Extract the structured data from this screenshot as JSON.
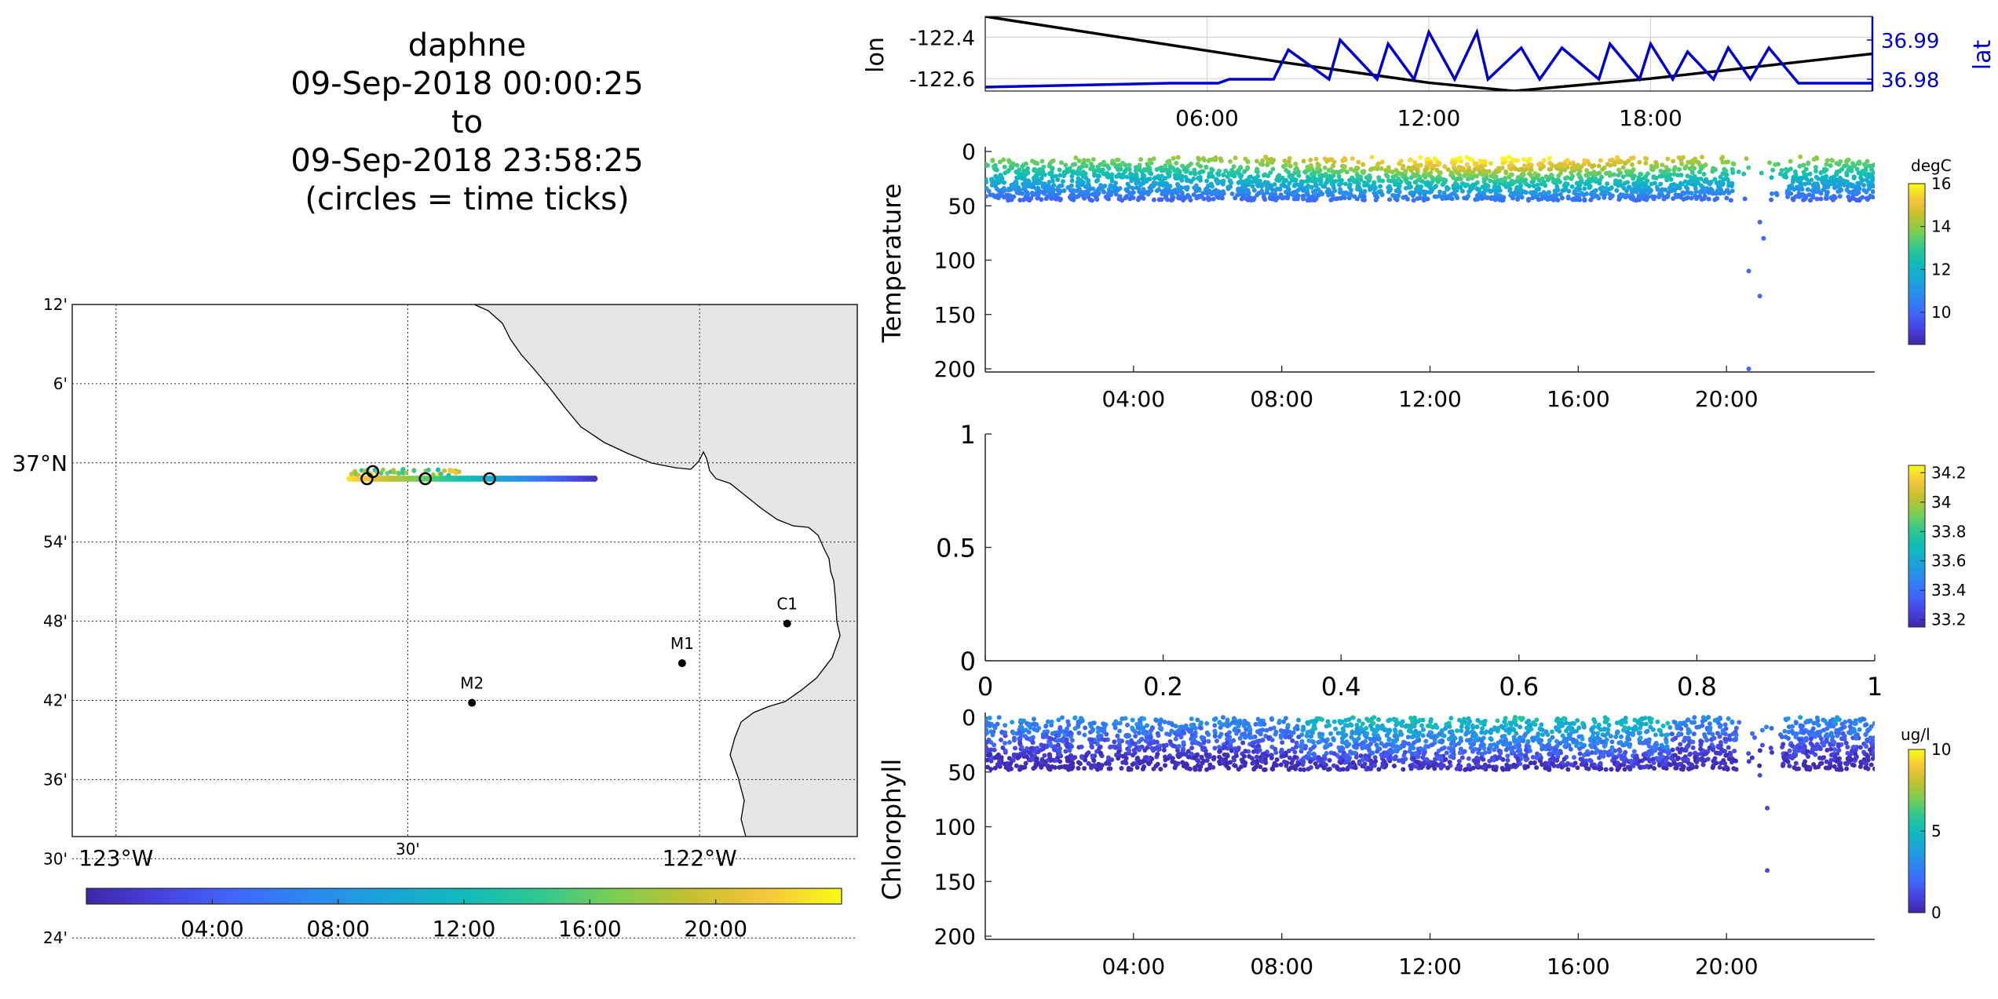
{
  "title": {
    "platform": "daphne",
    "start": "09-Sep-2018 00:00:25",
    "to": "to",
    "end": "09-Sep-2018 23:58:25",
    "note": "(circles = time ticks)"
  },
  "colors": {
    "lon_line": "#000000",
    "lat_line": "#0000cc",
    "land": "#e6e6e6",
    "parula": [
      "#3e26a8",
      "#4743e1",
      "#3f68fc",
      "#2a89ee",
      "#1aa5d8",
      "#0fbbbb",
      "#30c891",
      "#7bce52",
      "#c4c030",
      "#f6c63c",
      "#f9fb15"
    ]
  },
  "map": {
    "lat_labels": [
      "12'",
      "6'",
      "37°N",
      "54'",
      "48'",
      "42'",
      "36'",
      "30'",
      "24'"
    ],
    "lon_labels": [
      "123°W",
      "30'",
      "122°W"
    ],
    "time_colorbar_ticks": [
      "04:00",
      "08:00",
      "12:00",
      "16:00",
      "20:00"
    ],
    "stations": [
      {
        "name": "C1",
        "lon": -121.85,
        "lat": 36.797
      },
      {
        "name": "M1",
        "lon": -122.03,
        "lat": 36.747
      },
      {
        "name": "M2",
        "lon": -122.39,
        "lat": 36.697
      }
    ],
    "track": {
      "lon_start": -122.6,
      "lon_end": -122.18,
      "lat": 36.98
    },
    "time_tick_circles": [
      {
        "lon": -122.56,
        "lat": 36.989
      },
      {
        "lon": -122.57,
        "lat": 36.98
      },
      {
        "lon": -122.47,
        "lat": 36.98
      },
      {
        "lon": -122.36,
        "lat": 36.98
      }
    ]
  },
  "chart_data": [
    {
      "type": "line",
      "panel": "lon-lat time series",
      "xticks": [
        "06:00",
        "12:00",
        "18:00"
      ],
      "xlim_hours": [
        0,
        24
      ],
      "ylabel": "lon",
      "ylabel_right": "lat",
      "yticks_left": [
        "-122.4",
        "-122.6"
      ],
      "yticks_right": [
        "36.99",
        "36.98"
      ],
      "ylim_left": [
        -122.66,
        -122.3
      ],
      "ylim_right": [
        36.977,
        36.996
      ],
      "series": [
        {
          "name": "lon",
          "axis": "left",
          "x": [
            0,
            4,
            8,
            12,
            14.3,
            18,
            22,
            24
          ],
          "values": [
            -122.3,
            -122.41,
            -122.52,
            -122.62,
            -122.66,
            -122.6,
            -122.52,
            -122.48
          ]
        },
        {
          "name": "lat",
          "axis": "right",
          "x": [
            0,
            5,
            6.3,
            6.6,
            7.8,
            8.2,
            9.3,
            9.6,
            10.6,
            10.9,
            11.6,
            12.0,
            12.7,
            13.3,
            13.6,
            14.5,
            15.0,
            15.6,
            16.6,
            16.9,
            17.7,
            18.0,
            18.6,
            19.0,
            19.7,
            20.1,
            20.7,
            21.2,
            22.0,
            24
          ],
          "values": [
            36.978,
            36.979,
            36.979,
            36.98,
            36.98,
            36.9875,
            36.98,
            36.99,
            36.98,
            36.989,
            36.98,
            36.992,
            36.98,
            36.992,
            36.98,
            36.988,
            36.98,
            36.988,
            36.98,
            36.989,
            36.98,
            36.989,
            36.98,
            36.987,
            36.98,
            36.988,
            36.98,
            36.988,
            36.979,
            36.979
          ]
        }
      ]
    },
    {
      "type": "scatter",
      "panel": "Temperature",
      "ylabel": "Temperature",
      "yticks": [
        "0",
        "50",
        "100",
        "150",
        "200"
      ],
      "ylim": [
        0,
        200
      ],
      "y_reversed": true,
      "xticks": [
        "04:00",
        "08:00",
        "12:00",
        "16:00",
        "20:00"
      ],
      "xlim_hours": [
        0,
        24
      ],
      "colorbar": {
        "unit": "degC",
        "ticks": [
          "16",
          "14",
          "12",
          "10"
        ],
        "clim": [
          8.5,
          16
        ]
      },
      "depth_band": [
        5,
        50
      ],
      "deep_points": [
        {
          "hour": 20.9,
          "depth": 65
        },
        {
          "hour": 21.0,
          "depth": 80
        },
        {
          "hour": 20.6,
          "depth": 110
        },
        {
          "hour": 20.9,
          "depth": 133
        },
        {
          "hour": 20.6,
          "depth": 200
        }
      ]
    },
    {
      "type": "scatter",
      "panel": "Salinity (empty)",
      "yticks": [
        "1",
        "0.5",
        "0"
      ],
      "ylim": [
        0,
        1
      ],
      "xticks": [
        "0",
        "0.2",
        "0.4",
        "0.6",
        "0.8",
        "1"
      ],
      "xlim": [
        0,
        1
      ],
      "colorbar": {
        "unit": "",
        "ticks": [
          "34.2",
          "34",
          "33.8",
          "33.6",
          "33.4",
          "33.2"
        ],
        "clim": [
          33.15,
          34.25
        ]
      }
    },
    {
      "type": "scatter",
      "panel": "Chlorophyll",
      "ylabel": "Chlorophyll",
      "yticks": [
        "0",
        "50",
        "100",
        "150",
        "200"
      ],
      "ylim": [
        0,
        200
      ],
      "y_reversed": true,
      "xticks": [
        "04:00",
        "08:00",
        "12:00",
        "16:00",
        "20:00"
      ],
      "xlim_hours": [
        0,
        24
      ],
      "colorbar": {
        "unit": "ug/l",
        "ticks": [
          "10",
          "5",
          "0"
        ],
        "clim": [
          0,
          10
        ]
      },
      "depth_band": [
        0,
        50
      ],
      "deep_points": [
        {
          "hour": 20.9,
          "depth": 53
        },
        {
          "hour": 21.1,
          "depth": 83
        },
        {
          "hour": 21.1,
          "depth": 140
        }
      ]
    }
  ]
}
